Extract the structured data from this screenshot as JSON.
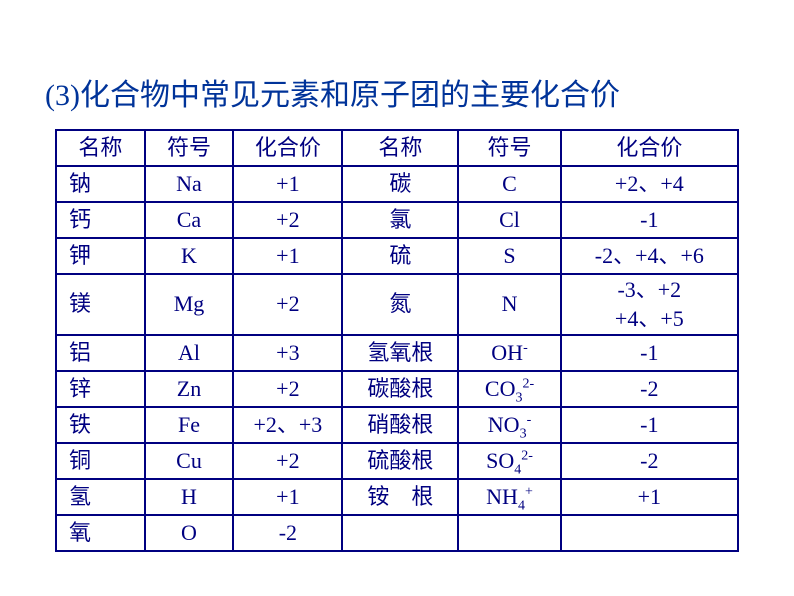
{
  "title": "(3)化合物中常见元素和原子团的主要化合价",
  "headers": {
    "name1": "名称",
    "sym1": "符号",
    "val1": "化合价",
    "name2": "名称",
    "sym2": "符号",
    "val2": "化合价"
  },
  "rows": [
    {
      "n1": "钠",
      "s1": "Na",
      "v1": "+1",
      "n2": "碳",
      "s2": "C",
      "v2": "+2、+4"
    },
    {
      "n1": "钙",
      "s1": "Ca",
      "v1": "+2",
      "n2": "氯",
      "s2": "Cl",
      "v2": "-1"
    },
    {
      "n1": "钾",
      "s1": "K",
      "v1": "+1",
      "n2": "硫",
      "s2": "S",
      "v2": "-2、+4、+6"
    },
    {
      "n1": "镁",
      "s1": "Mg",
      "v1": "+2",
      "n2": "氮",
      "s2": "N",
      "v2_l1": "-3、+2",
      "v2_l2": "+4、+5",
      "tall": true
    },
    {
      "n1": "铝",
      "s1": "Al",
      "v1": "+3",
      "n2": "氢氧根",
      "s2_html": "OH<sup>-</sup>",
      "v2": "-1"
    },
    {
      "n1": "锌",
      "s1": "Zn",
      "v1": "+2",
      "n2": "碳酸根",
      "s2_html": "CO<sub>3</sub><sup>2-</sup>",
      "v2": "-2"
    },
    {
      "n1": "铁",
      "s1": "Fe",
      "v1": "+2、+3",
      "n2": "硝酸根",
      "s2_html": "NO<sub>3</sub><sup>-</sup>",
      "v2": "-1"
    },
    {
      "n1": "铜",
      "s1": "Cu",
      "v1": "+2",
      "n2": "硫酸根",
      "s2_html": "SO<sub>4</sub><sup>2-</sup>",
      "v2": "-2"
    },
    {
      "n1": "氢",
      "s1": "H",
      "v1": "+1",
      "n2": "铵　根",
      "s2_html": "NH<sub>4</sub><sup>+</sup>",
      "v2": "+1"
    },
    {
      "n1": "氧",
      "s1": "O",
      "v1": "-2",
      "n2": "",
      "s2": "",
      "v2": ""
    }
  ],
  "style": {
    "text_color": "#000080",
    "title_color": "#003399",
    "border_color": "#000080",
    "background": "#ffffff",
    "title_fontsize": 30,
    "cell_fontsize": 22
  }
}
